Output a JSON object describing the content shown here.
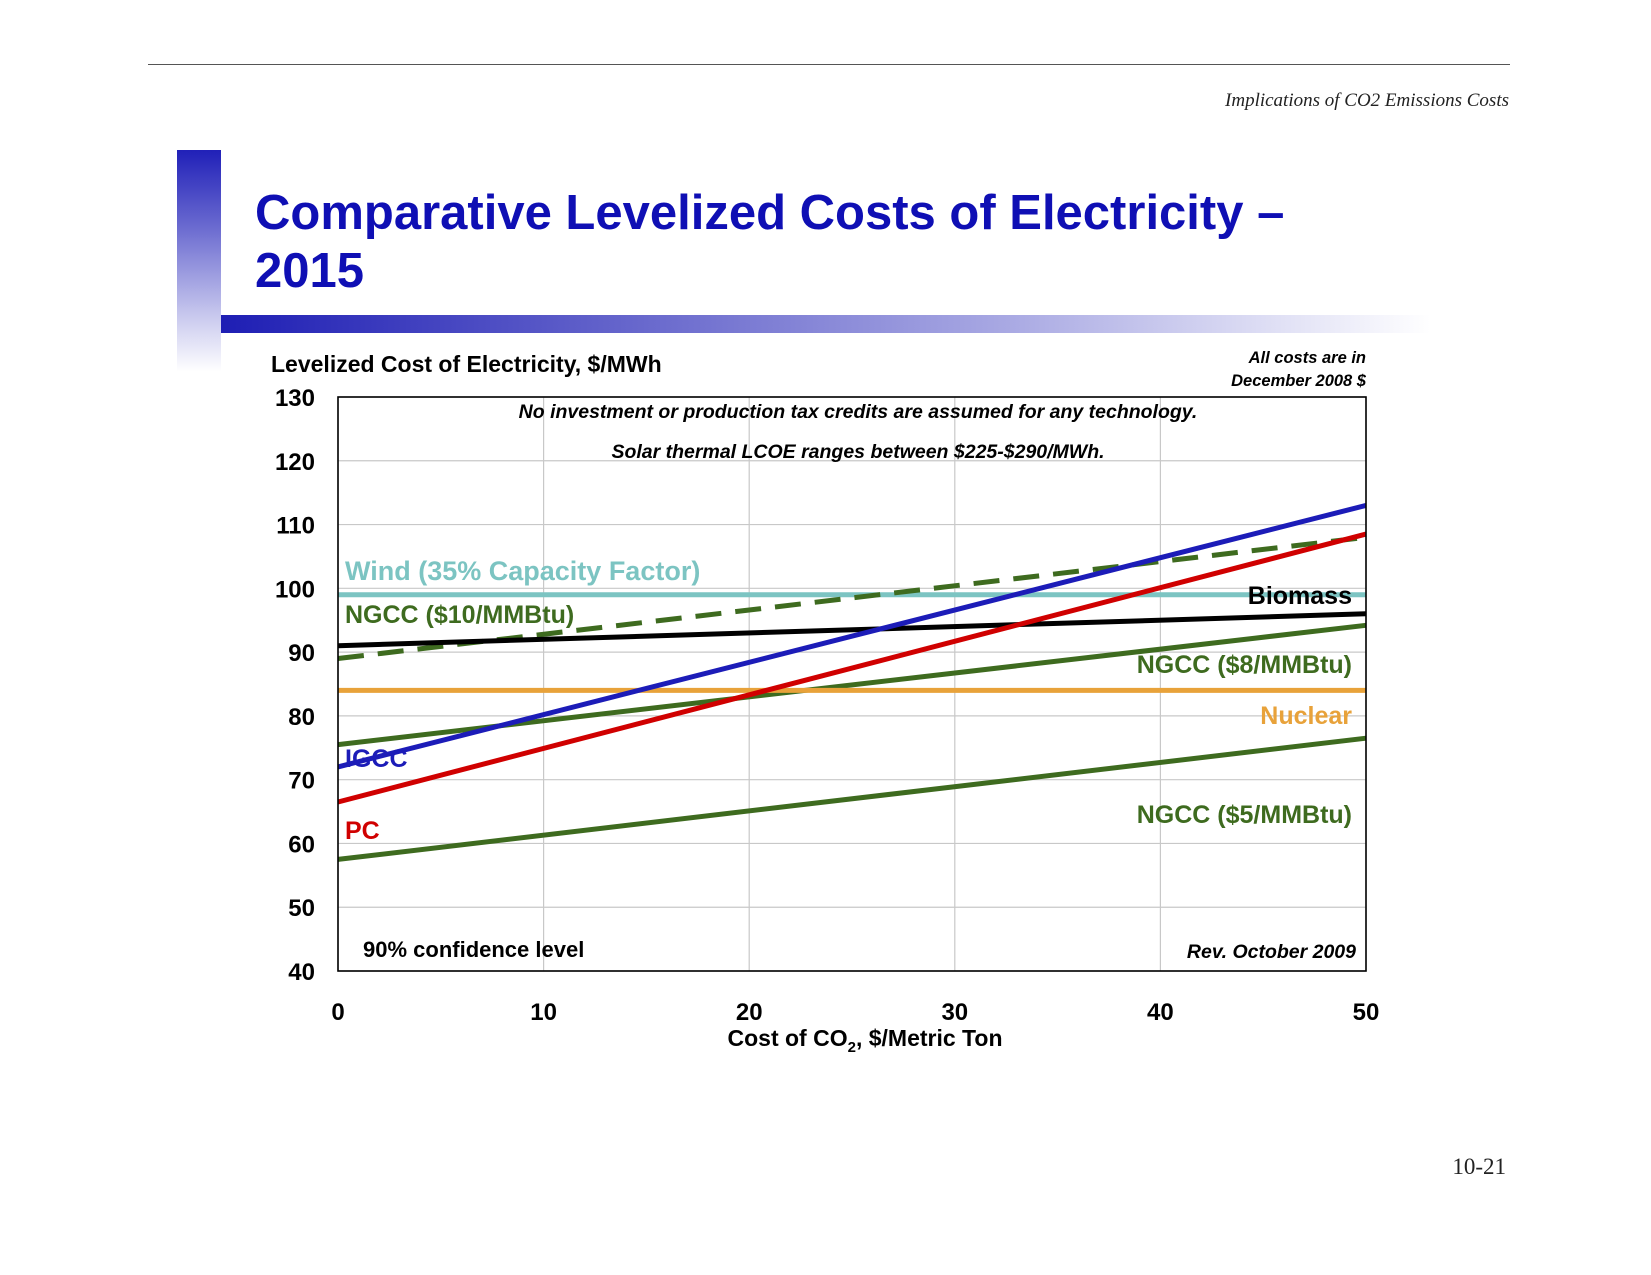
{
  "header": {
    "running_title": "Implications of CO2 Emissions Costs"
  },
  "slide": {
    "title": "Comparative Levelized Costs of Electricity – 2015"
  },
  "footer": {
    "page_number": "10-21"
  },
  "colors": {
    "title": "#0f0fb4",
    "pc": "#d00000",
    "igcc": "#1c1cb8",
    "ngcc": "#3e6b1f",
    "wind": "#7cc4c2",
    "nuclear": "#e8a23a",
    "biomass": "#000000"
  },
  "chart_data": {
    "type": "line",
    "ylabel": "Levelized Cost of Electricity, $/MWh",
    "xlabel": "Cost of CO",
    "xlabel_subscript": "2",
    "xlabel_suffix": ", $/Metric Ton",
    "xlim": [
      0,
      50
    ],
    "ylim": [
      40,
      130
    ],
    "xticks": [
      0,
      10,
      20,
      30,
      40,
      50
    ],
    "yticks": [
      40,
      50,
      60,
      70,
      80,
      90,
      100,
      110,
      120,
      130
    ],
    "grid": true,
    "note_top_right": [
      "All costs are in",
      "December 2008 $"
    ],
    "annotations": {
      "tax_credit_note": "No investment or production tax credits are assumed for any technology.",
      "solar_note": "Solar thermal LCOE ranges between $225-$290/MWh.",
      "confidence": "90% confidence level",
      "revision": "Rev. October 2009"
    },
    "series": [
      {
        "name": "Wind (35% Capacity Factor)",
        "x": [
          0,
          50
        ],
        "y": [
          99,
          99
        ],
        "color": "#7cc4c2",
        "style": "solid"
      },
      {
        "name": "NGCC ($10/MMBtu)",
        "x": [
          0,
          50
        ],
        "y": [
          89,
          108
        ],
        "color": "#3e6b1f",
        "style": "dashed"
      },
      {
        "name": "Biomass",
        "x": [
          0,
          50
        ],
        "y": [
          91,
          96
        ],
        "color": "#000000",
        "style": "solid"
      },
      {
        "name": "NGCC ($8/MMBtu)",
        "x": [
          0,
          50
        ],
        "y": [
          75.5,
          94.2
        ],
        "color": "#3e6b1f",
        "style": "solid"
      },
      {
        "name": "Nuclear",
        "x": [
          0,
          50
        ],
        "y": [
          84,
          84
        ],
        "color": "#e8a23a",
        "style": "solid"
      },
      {
        "name": "IGCC",
        "x": [
          0,
          50
        ],
        "y": [
          72,
          113
        ],
        "color": "#1c1cb8",
        "style": "solid"
      },
      {
        "name": "PC",
        "x": [
          0,
          50
        ],
        "y": [
          66.5,
          108.5
        ],
        "color": "#d00000",
        "style": "solid"
      },
      {
        "name": "NGCC ($5/MMBtu)",
        "x": [
          0,
          50
        ],
        "y": [
          57.5,
          76.5
        ],
        "color": "#3e6b1f",
        "style": "solid"
      }
    ]
  }
}
